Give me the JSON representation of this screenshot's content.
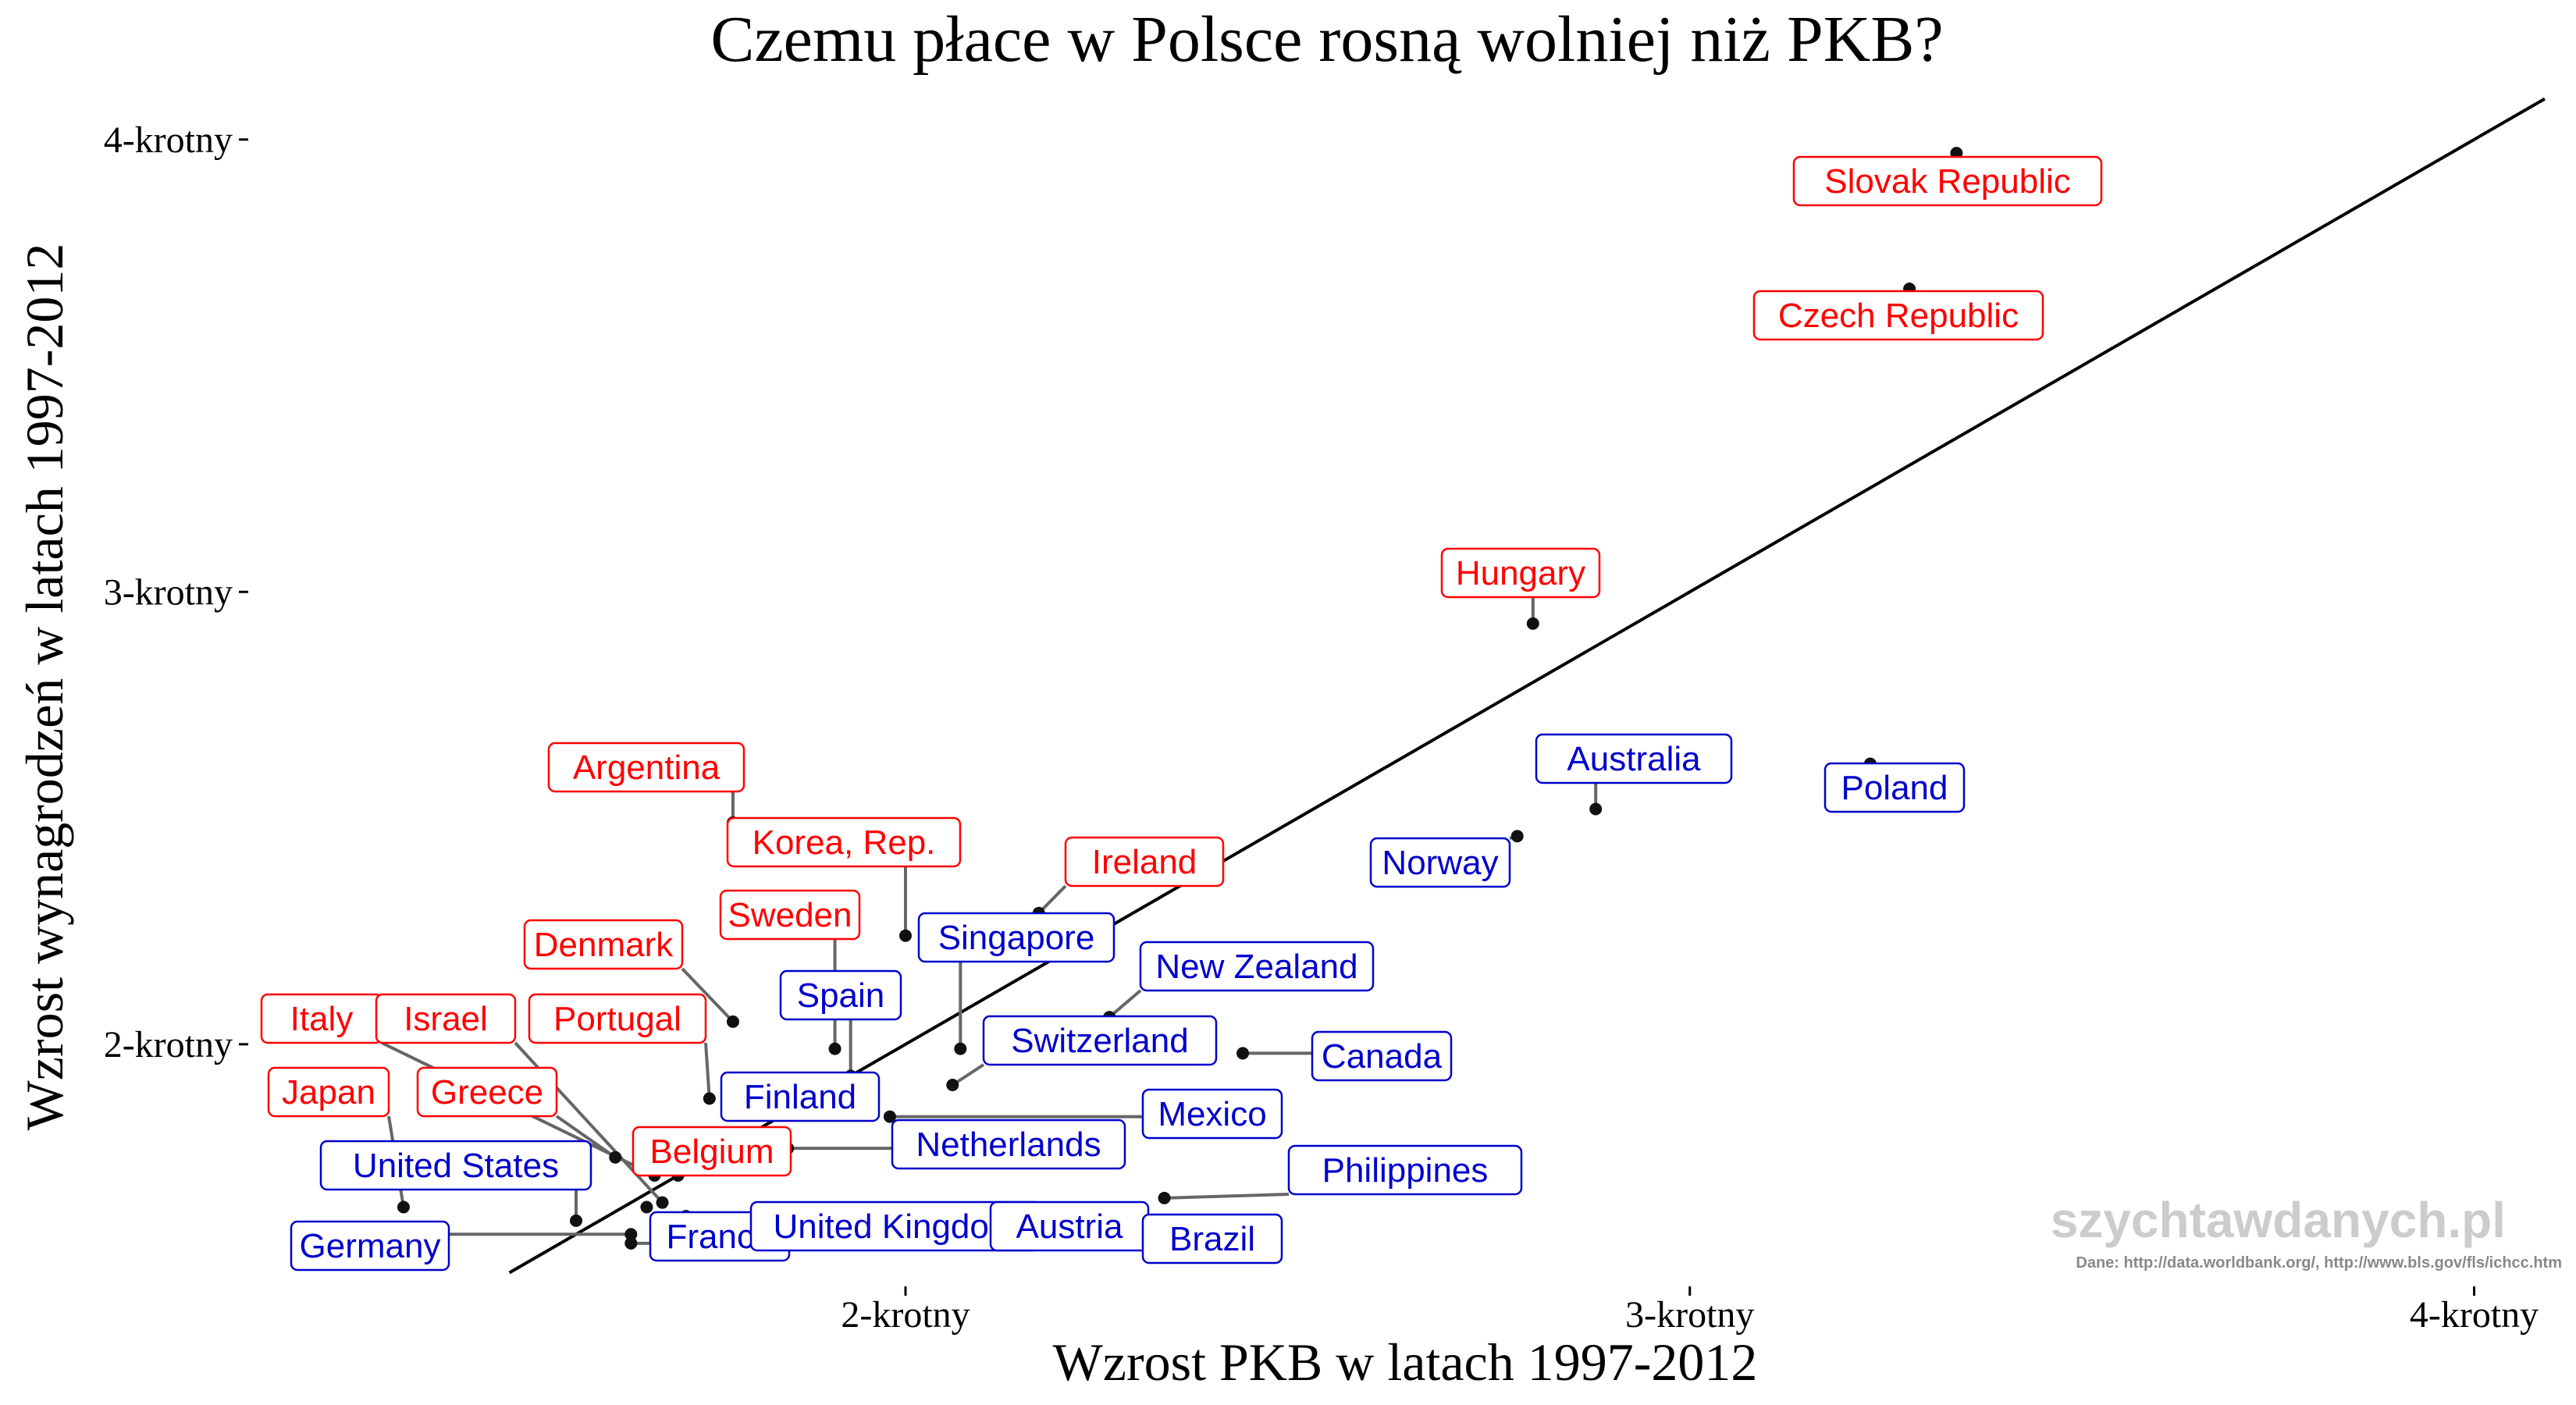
{
  "chart_data": {
    "type": "scatter",
    "title": "Czemu płace w Polsce rosną wolniej niż PKB?",
    "xlabel": "Wzrost PKB w latach 1997-2012",
    "ylabel": "Wzrost wynagrodzeń w latach 1997-2012",
    "x_ticks": [
      {
        "value": 2,
        "label": "2-krotny"
      },
      {
        "value": 3,
        "label": "3-krotny"
      },
      {
        "value": 4,
        "label": "4-krotny"
      }
    ],
    "y_ticks": [
      {
        "value": 2,
        "label": "2-krotny"
      },
      {
        "value": 3,
        "label": "3-krotny"
      },
      {
        "value": 4,
        "label": "4-krotny"
      }
    ],
    "xlim": [
      1.16,
      4.1
    ],
    "ylim": [
      1.47,
      4.11
    ],
    "reference_line": "y = x",
    "grid": false,
    "group_colors": {
      "above": "#ff0000",
      "below": "#0000cc"
    },
    "points": [
      {
        "name": "Slovak Republic",
        "x": 3.34,
        "y": 3.97,
        "group": "above"
      },
      {
        "name": "Czech Republic",
        "x": 3.28,
        "y": 3.67,
        "group": "above"
      },
      {
        "name": "Hungary",
        "x": 2.8,
        "y": 2.93,
        "group": "above"
      },
      {
        "name": "Argentina",
        "x": 1.78,
        "y": 2.49,
        "group": "above"
      },
      {
        "name": "Korea, Rep.",
        "x": 2.0,
        "y": 2.24,
        "group": "above"
      },
      {
        "name": "Ireland",
        "x": 2.17,
        "y": 2.29,
        "group": "above"
      },
      {
        "name": "Sweden",
        "x": 1.91,
        "y": 1.99,
        "group": "above"
      },
      {
        "name": "Denmark",
        "x": 1.78,
        "y": 2.05,
        "group": "above"
      },
      {
        "name": "Portugal",
        "x": 1.75,
        "y": 1.88,
        "group": "above"
      },
      {
        "name": "Italy",
        "x": 1.68,
        "y": 1.71,
        "group": "above"
      },
      {
        "name": "Israel",
        "x": 1.69,
        "y": 1.65,
        "group": "above"
      },
      {
        "name": "Japan",
        "x": 1.36,
        "y": 1.64,
        "group": "above"
      },
      {
        "name": "Greece",
        "x": 1.63,
        "y": 1.75,
        "group": "above"
      },
      {
        "name": "Belgium",
        "x": 1.71,
        "y": 1.71,
        "group": "above"
      },
      {
        "name": "Australia",
        "x": 2.88,
        "y": 2.52,
        "group": "below"
      },
      {
        "name": "Poland",
        "x": 3.23,
        "y": 2.62,
        "group": "below"
      },
      {
        "name": "Norway",
        "x": 2.78,
        "y": 2.46,
        "group": "below"
      },
      {
        "name": "Singapore",
        "x": 2.07,
        "y": 1.99,
        "group": "below"
      },
      {
        "name": "New Zealand",
        "x": 2.26,
        "y": 2.06,
        "group": "below"
      },
      {
        "name": "Spain",
        "x": 1.93,
        "y": 1.93,
        "group": "below"
      },
      {
        "name": "Switzerland",
        "x": 2.06,
        "y": 1.91,
        "group": "below"
      },
      {
        "name": "Canada",
        "x": 2.43,
        "y": 1.98,
        "group": "below"
      },
      {
        "name": "Finland",
        "x": 1.78,
        "y": 1.86,
        "group": "below"
      },
      {
        "name": "Mexico",
        "x": 1.98,
        "y": 1.84,
        "group": "below"
      },
      {
        "name": "Netherlands",
        "x": 1.85,
        "y": 1.77,
        "group": "below"
      },
      {
        "name": "Philippines",
        "x": 2.33,
        "y": 1.66,
        "group": "below"
      },
      {
        "name": "United States",
        "x": 1.58,
        "y": 1.61,
        "group": "below"
      },
      {
        "name": "Germany",
        "x": 1.65,
        "y": 1.58,
        "group": "below"
      },
      {
        "name": "France",
        "x": 1.67,
        "y": 1.64,
        "group": "below"
      },
      {
        "name": "United Kingdom",
        "x": 1.72,
        "y": 1.62,
        "group": "below"
      },
      {
        "name": "Austria",
        "x": 1.65,
        "y": 1.56,
        "group": "below"
      },
      {
        "name": "Brazil",
        "x": 2.33,
        "y": 1.61,
        "group": "below"
      }
    ]
  },
  "watermark": "szychtawdanych.pl",
  "source": "Dane: http://data.worldbank.org/, http://www.bls.gov/fls/ichcc.htm"
}
